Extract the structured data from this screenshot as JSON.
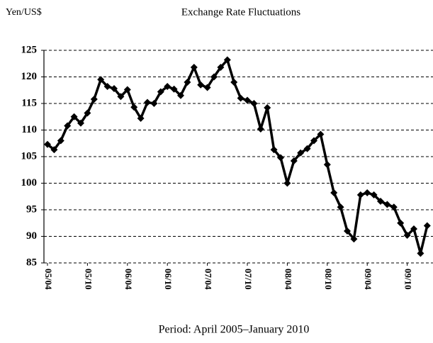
{
  "chart_data": {
    "type": "line",
    "title": "Exchange Rate Fluctuations",
    "y_label": "Yen/US$",
    "x_label": "Period: April 2005–January 2010",
    "categories": [
      "05/04",
      null,
      null,
      null,
      null,
      null,
      "05/10",
      null,
      null,
      null,
      null,
      null,
      "06/04",
      null,
      null,
      null,
      null,
      null,
      "06/10",
      null,
      null,
      null,
      null,
      null,
      "07/04",
      null,
      null,
      null,
      null,
      null,
      "07/10",
      null,
      null,
      null,
      null,
      null,
      "08/04",
      null,
      null,
      null,
      null,
      null,
      "08/10",
      null,
      null,
      null,
      null,
      null,
      "09/04",
      null,
      null,
      null,
      null,
      null,
      "09/10",
      null,
      null,
      null
    ],
    "series": [
      {
        "name": "Yen/US$",
        "color": "#000000",
        "values": [
          107.3,
          106.3,
          108,
          110.8,
          112.5,
          111.3,
          113.2,
          115.8,
          119.5,
          118.2,
          117.8,
          116.3,
          117.6,
          114.3,
          112.2,
          115.2,
          115,
          117.2,
          118.2,
          117.7,
          116.5,
          119,
          121.8,
          118.5,
          118,
          120,
          121.8,
          123.2,
          119,
          116,
          115.6,
          115,
          110.2,
          114.2,
          106.3,
          104.8,
          100,
          104.2,
          105.7,
          106.5,
          108,
          109.2,
          103.5,
          98.2,
          95.5,
          91,
          89.5,
          97.8,
          98.2,
          97.8,
          96.6,
          96,
          95.5,
          92.5,
          90.2,
          91.4,
          86.8,
          92
        ]
      }
    ],
    "ylim": [
      85,
      125
    ],
    "yticks": [
      85,
      90,
      95,
      100,
      105,
      110,
      115,
      120,
      125
    ],
    "grid": true
  }
}
